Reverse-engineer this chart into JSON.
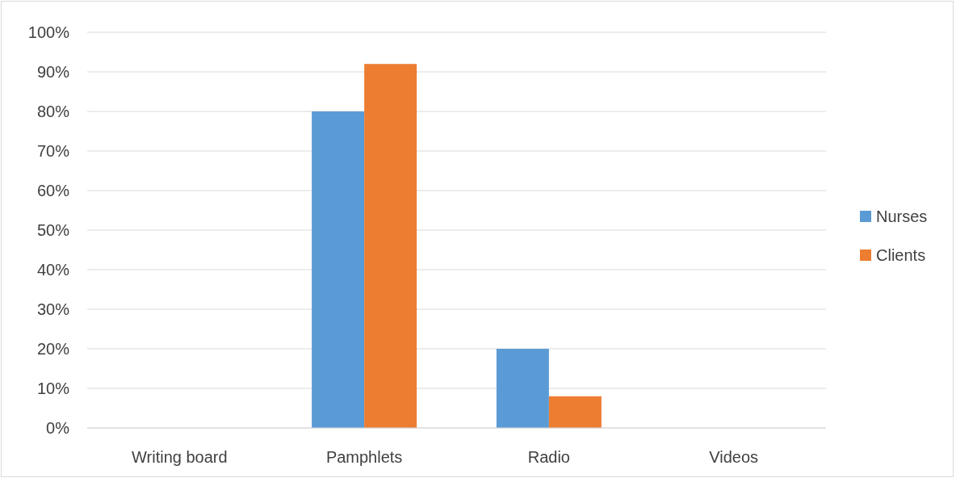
{
  "chart_data": {
    "type": "bar",
    "categories": [
      "Writing board",
      "Pamphlets",
      "Radio",
      "Videos"
    ],
    "series": [
      {
        "name": "Nurses",
        "color": "#5b9bd5",
        "values": [
          0,
          80,
          20,
          0
        ]
      },
      {
        "name": "Clients",
        "color": "#ed7d31",
        "values": [
          0,
          92,
          8,
          0
        ]
      }
    ],
    "ylim": [
      0,
      100
    ],
    "yticks": [
      {
        "value": 0,
        "label": "0%"
      },
      {
        "value": 10,
        "label": "10%"
      },
      {
        "value": 20,
        "label": "20%"
      },
      {
        "value": 30,
        "label": "30%"
      },
      {
        "value": 40,
        "label": "40%"
      },
      {
        "value": 50,
        "label": "50%"
      },
      {
        "value": 60,
        "label": "60%"
      },
      {
        "value": 70,
        "label": "70%"
      },
      {
        "value": 80,
        "label": "80%"
      },
      {
        "value": 90,
        "label": "90%"
      },
      {
        "value": 100,
        "label": "100%"
      }
    ],
    "grid": "y",
    "legend": "right"
  }
}
